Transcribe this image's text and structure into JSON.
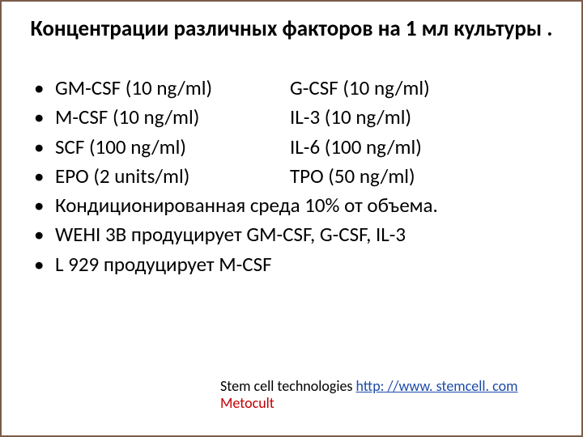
{
  "title": "Концентрации различных факторов на 1 мл культуры .",
  "rows": [
    {
      "left": "GM-CSF (10 ng/ml)",
      "right": "G-CSF (10 ng/ml)"
    },
    {
      "left": "M-CSF (10 ng/ml)",
      "right": "  IL-3    (10 ng/ml)"
    },
    {
      "left": "SCF      (100 ng/ml)",
      "right": "  IL-6   (100 ng/ml)"
    },
    {
      "left": "EPO     (2 units/ml)",
      "right": "  TPO    (50 ng/ml)"
    }
  ],
  "lines": [
    "Кондиционированная среда 10% от объема.",
    "WEHI 3B продуцирует GM-CSF, G-CSF, IL-3",
    "L 929 продуцирует M-CSF"
  ],
  "footer": {
    "prefix": "Stem cell technologies ",
    "link_text": "http: //www. stemcell. com",
    "line2": "Metocult"
  },
  "colors": {
    "border": "#7a5c4a",
    "link": "#1a4aa8",
    "accent": "#c00000"
  }
}
